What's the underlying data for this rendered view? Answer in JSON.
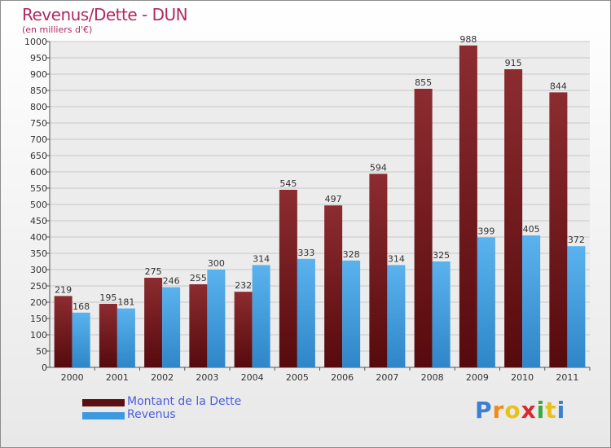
{
  "chart_data": {
    "type": "bar",
    "title": "Revenus/Dette - DUN",
    "subtitle": "(en milliers d'€)",
    "categories": [
      "2000",
      "2001",
      "2002",
      "2003",
      "2004",
      "2005",
      "2006",
      "2007",
      "2008",
      "2009",
      "2010",
      "2011"
    ],
    "series": [
      {
        "name": "Montant de la Dette",
        "color": "#7a1a1e",
        "values": [
          219,
          195,
          275,
          255,
          232,
          545,
          497,
          594,
          855,
          988,
          915,
          844
        ]
      },
      {
        "name": "Revenus",
        "color": "#4aa6e6",
        "values": [
          168,
          181,
          246,
          300,
          314,
          333,
          328,
          314,
          325,
          399,
          405,
          372
        ]
      }
    ],
    "ylim": [
      0,
      1000
    ],
    "ytick_step": 50,
    "grid": true,
    "legend": "bottom-left"
  },
  "logo": {
    "letters": [
      "P",
      "r",
      "o",
      "x",
      "i",
      "t",
      "i"
    ],
    "colors": [
      "#3a7fd0",
      "#f08a1a",
      "#e8c21a",
      "#d82a2a",
      "#3aa83a",
      "#e8c21a",
      "#3a7fd0"
    ]
  }
}
